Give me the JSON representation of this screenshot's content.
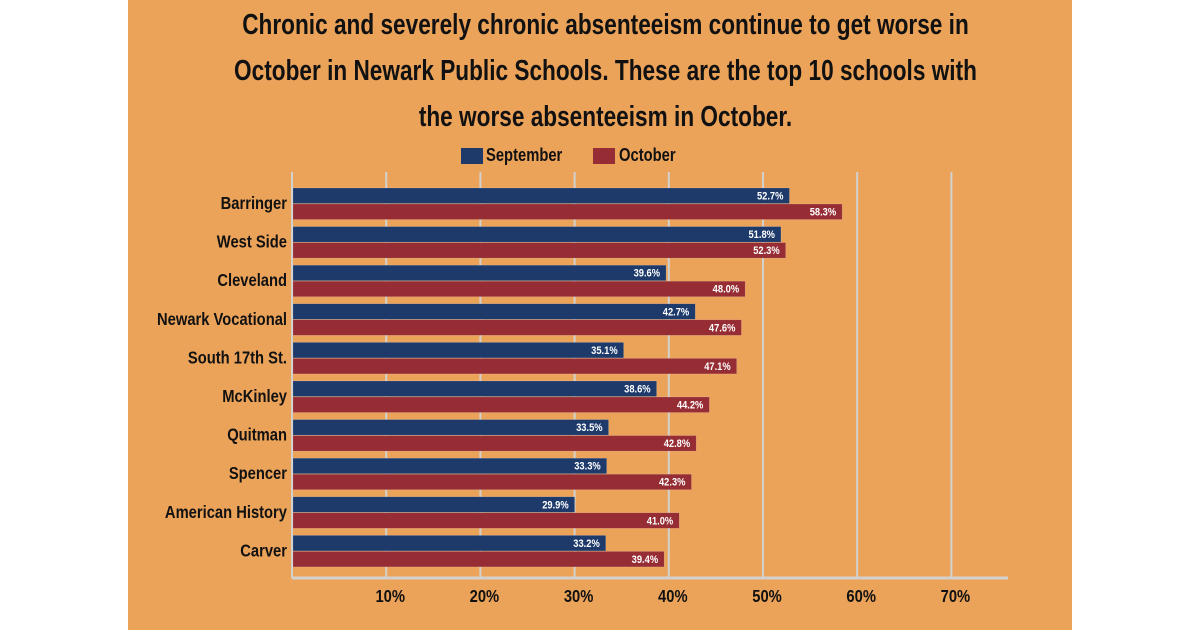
{
  "chart_data": {
    "type": "bar",
    "orientation": "horizontal",
    "title_lines": [
      "Chronic and severely chronic absenteeism continue to get worse in",
      "October in Newark Public Schools. These are the top 10 schools with",
      "the worse absenteeism in October."
    ],
    "categories": [
      "Barringer",
      "West Side",
      "Cleveland",
      "Newark Vocational",
      "South 17th St.",
      "McKinley",
      "Quitman",
      "Spencer",
      "American History",
      "Carver"
    ],
    "series": [
      {
        "name": "September",
        "color": "#1D3A6B",
        "values": [
          52.7,
          51.8,
          39.6,
          42.7,
          35.1,
          38.6,
          33.5,
          33.3,
          29.9,
          33.2
        ],
        "labels": [
          "52.7%",
          "51.8%",
          "39.6%",
          "42.7%",
          "35.1%",
          "38.6%",
          "33.5%",
          "33.3%",
          "29.9%",
          "33.2%"
        ]
      },
      {
        "name": "October",
        "color": "#962D34",
        "values": [
          58.3,
          52.3,
          48.0,
          47.6,
          47.1,
          44.2,
          42.8,
          42.3,
          41.0,
          39.4
        ],
        "labels": [
          "58.3%",
          "52.3%",
          "48.0%",
          "47.6%",
          "47.1%",
          "44.2%",
          "42.8%",
          "42.3%",
          "41.0%",
          "39.4%"
        ]
      }
    ],
    "xlim": [
      0,
      77
    ],
    "xticks": [
      10,
      20,
      30,
      40,
      50,
      60,
      70
    ],
    "xtick_labels": [
      "10%",
      "20%",
      "30%",
      "40%",
      "50%",
      "60%",
      "70%"
    ],
    "grid": true,
    "legend": "top-center",
    "background": "#EBA35A"
  }
}
